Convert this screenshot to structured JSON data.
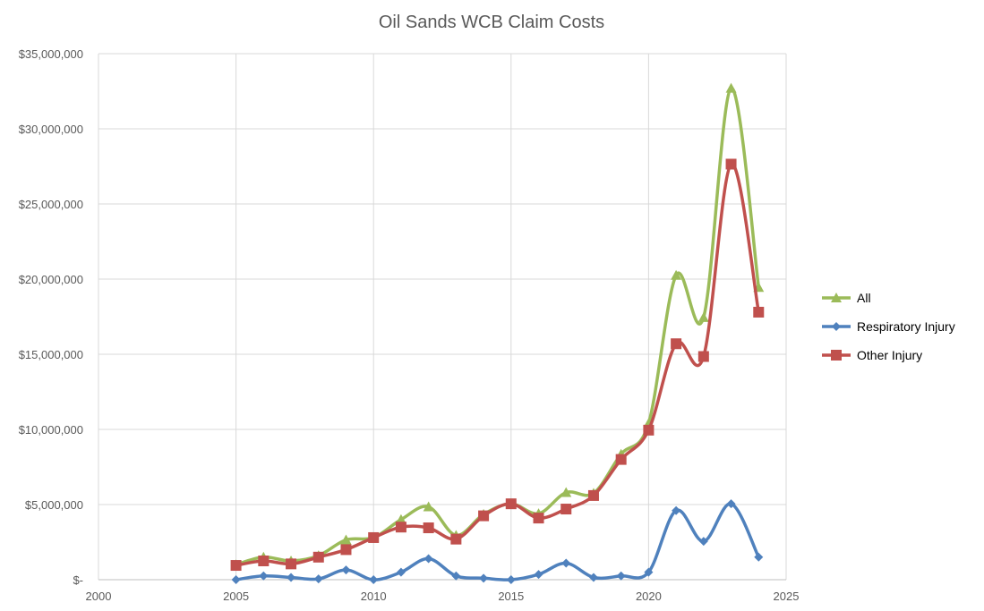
{
  "chart_data": {
    "type": "line",
    "title": "Oil Sands WCB Claim Costs",
    "xlabel": "",
    "ylabel": "",
    "xlim": [
      2000,
      2025
    ],
    "ylim": [
      0,
      35000000
    ],
    "x_ticks": [
      2000,
      2005,
      2010,
      2015,
      2020,
      2025
    ],
    "y_ticks": [
      0,
      5000000,
      10000000,
      15000000,
      20000000,
      25000000,
      30000000,
      35000000
    ],
    "y_tick_labels": [
      "$-",
      "$5,000,000",
      "$10,000,000",
      "$15,000,000",
      "$20,000,000",
      "$25,000,000",
      "$30,000,000",
      "$35,000,000"
    ],
    "x_tick_labels": [
      "2000",
      "2005",
      "2010",
      "2015",
      "2020",
      "2025"
    ],
    "grid": true,
    "legend_position": "right",
    "x": [
      2005,
      2006,
      2007,
      2008,
      2009,
      2010,
      2011,
      2012,
      2013,
      2014,
      2015,
      2016,
      2017,
      2018,
      2019,
      2020,
      2021,
      2022,
      2023,
      2024
    ],
    "series": [
      {
        "name": "All",
        "color": "#9BBB59",
        "marker": "triangle",
        "values": [
          1000000,
          1500000,
          1250000,
          1600000,
          2650000,
          2800000,
          4000000,
          4850000,
          2950000,
          4350000,
          5050000,
          4400000,
          5800000,
          5750000,
          8350000,
          10400000,
          20250000,
          17450000,
          32700000,
          19450000
        ]
      },
      {
        "name": "Respiratory Injury",
        "color": "#4F81BD",
        "marker": "diamond",
        "values": [
          0,
          250000,
          150000,
          50000,
          650000,
          0,
          500000,
          1400000,
          250000,
          100000,
          0,
          350000,
          1100000,
          150000,
          250000,
          500000,
          4600000,
          2550000,
          5050000,
          1500000
        ]
      },
      {
        "name": "Other Injury",
        "color": "#C0504D",
        "marker": "square",
        "values": [
          950000,
          1250000,
          1050000,
          1500000,
          2000000,
          2800000,
          3500000,
          3450000,
          2700000,
          4250000,
          5050000,
          4100000,
          4700000,
          5600000,
          8000000,
          9950000,
          15700000,
          14850000,
          27650000,
          17800000
        ]
      }
    ]
  }
}
